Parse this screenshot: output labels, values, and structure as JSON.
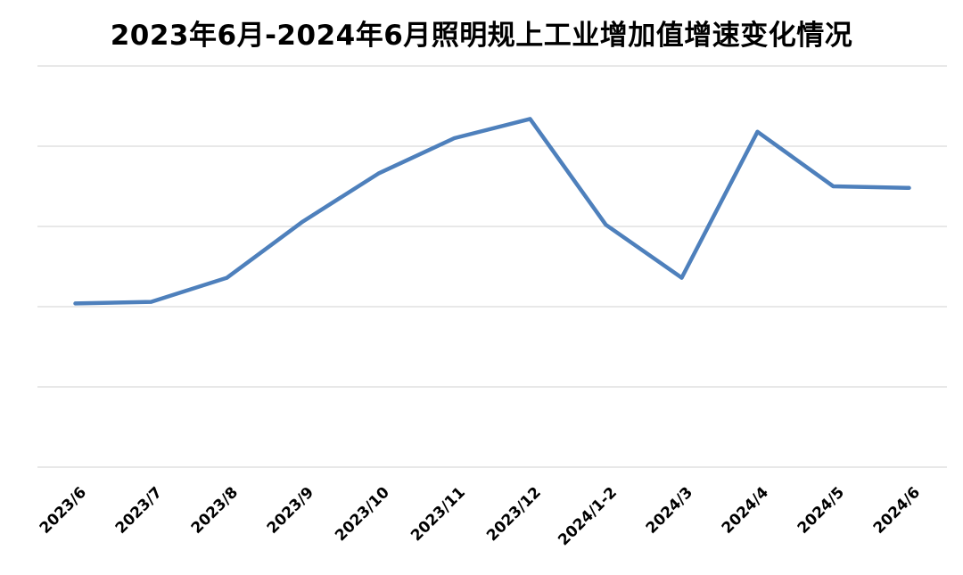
{
  "title": "2023年6月-2024年6月照明规上工业增加值增速变化情况",
  "colors": {
    "background": "#FFFFFF",
    "line": "#4E80BC",
    "gridline": "#D9D9D9",
    "title_text": "#000000",
    "axis_label_text": "#000000"
  },
  "chart_data": {
    "type": "line",
    "title": "2023年6月-2024年6月照明规上工业增加值增速变化情况",
    "categories": [
      "2023/6",
      "2023/7",
      "2023/8",
      "2023/9",
      "2023/10",
      "2023/11",
      "2023/12",
      "2024/1-2",
      "2024/3",
      "2024/4",
      "2024/5",
      "2024/6"
    ],
    "values": [
      0.2,
      0.3,
      1.8,
      5.3,
      8.3,
      10.5,
      11.7,
      5.1,
      1.8,
      10.9,
      7.5,
      7.4
    ],
    "xlabel": "",
    "ylabel": "",
    "ylim": [
      -10,
      15
    ],
    "gridline_step": 5,
    "y_axis_tick_labels_visible": false,
    "values_estimated_from_unlabeled_gridlines": true,
    "grid": "horizontal",
    "legend_position": "none",
    "x_tick_rotation_deg": 45
  }
}
